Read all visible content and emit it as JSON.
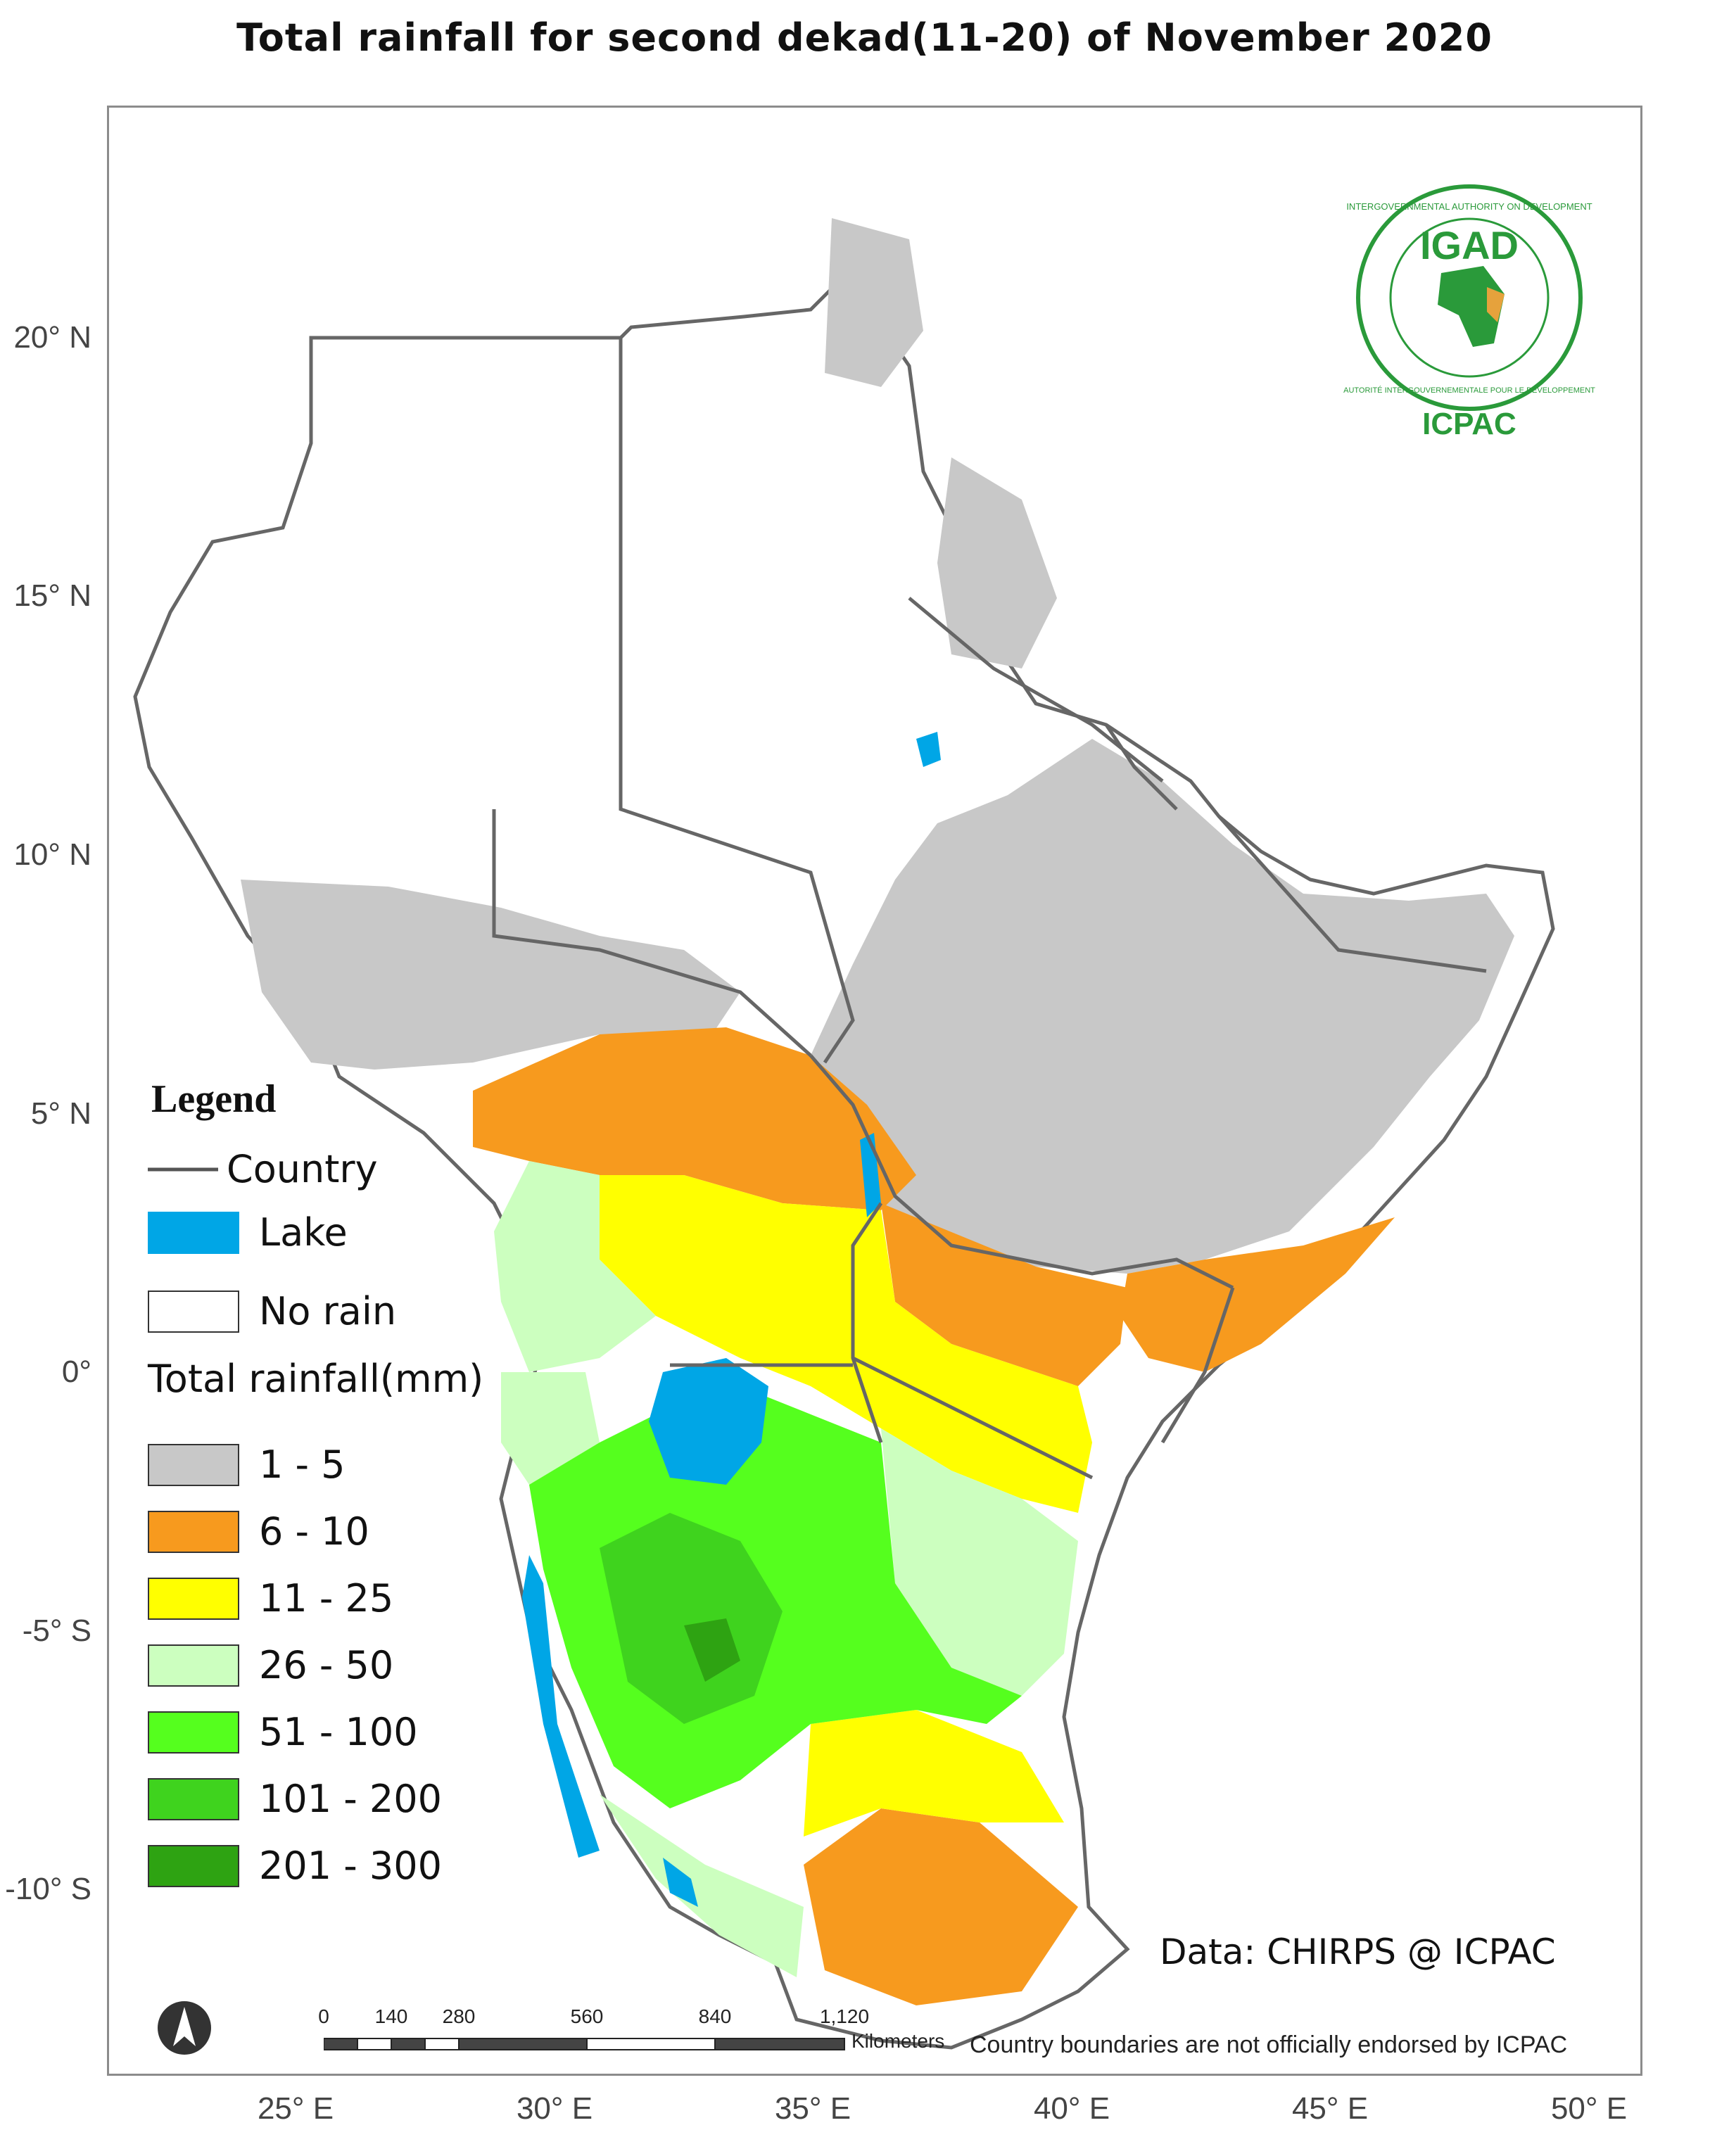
{
  "title": "Total rainfall for  second  dekad(11-20)  of November 2020",
  "axes": {
    "lat_labels": [
      "20° N",
      "15° N",
      "10° N",
      "5° N",
      "0°",
      "-5° S",
      "-10° S"
    ],
    "lon_labels": [
      "25° E",
      "30° E",
      "35° E",
      "40° E",
      "45° E",
      "50° E"
    ]
  },
  "legend": {
    "title": "Legend",
    "country_label": "Country",
    "lake_label": "Lake",
    "no_rain_label": "No rain",
    "rainfall_title": "Total rainfall(mm)",
    "classes": [
      {
        "label": "1 - 5",
        "color": "#c8c8c8"
      },
      {
        "label": "6 - 10",
        "color": "#f79a1e"
      },
      {
        "label": "11 - 25",
        "color": "#ffff00"
      },
      {
        "label": "26 - 50",
        "color": "#ccffbf"
      },
      {
        "label": "51 - 100",
        "color": "#55ff1e"
      },
      {
        "label": "101 - 200",
        "color": "#3fd31e"
      },
      {
        "label": "201 - 300",
        "color": "#2ea312"
      }
    ],
    "lake_color": "#00a6e6",
    "country_color": "#666666"
  },
  "logo": {
    "acronym": "IGAD",
    "ring_text_top": "INTERGOVERNMENTAL AUTHORITY ON DEVELOPMENT",
    "ring_text_bottom": "AUTORITÉ INTERGOUVERNEMENTALE POUR LE DÉVELOPPEMENT",
    "sub_acronym": "ICPAC",
    "icon": "igad-africa-emblem"
  },
  "data_credit": "Data: CHIRPS @ ICPAC",
  "disclaimer": "Country boundaries are not officially endorsed by ICPAC",
  "scalebar": {
    "ticks": [
      "0",
      "140",
      "280",
      "560",
      "840",
      "1,120"
    ],
    "unit": "Kilometers"
  },
  "north_arrow": "north-arrow-icon"
}
